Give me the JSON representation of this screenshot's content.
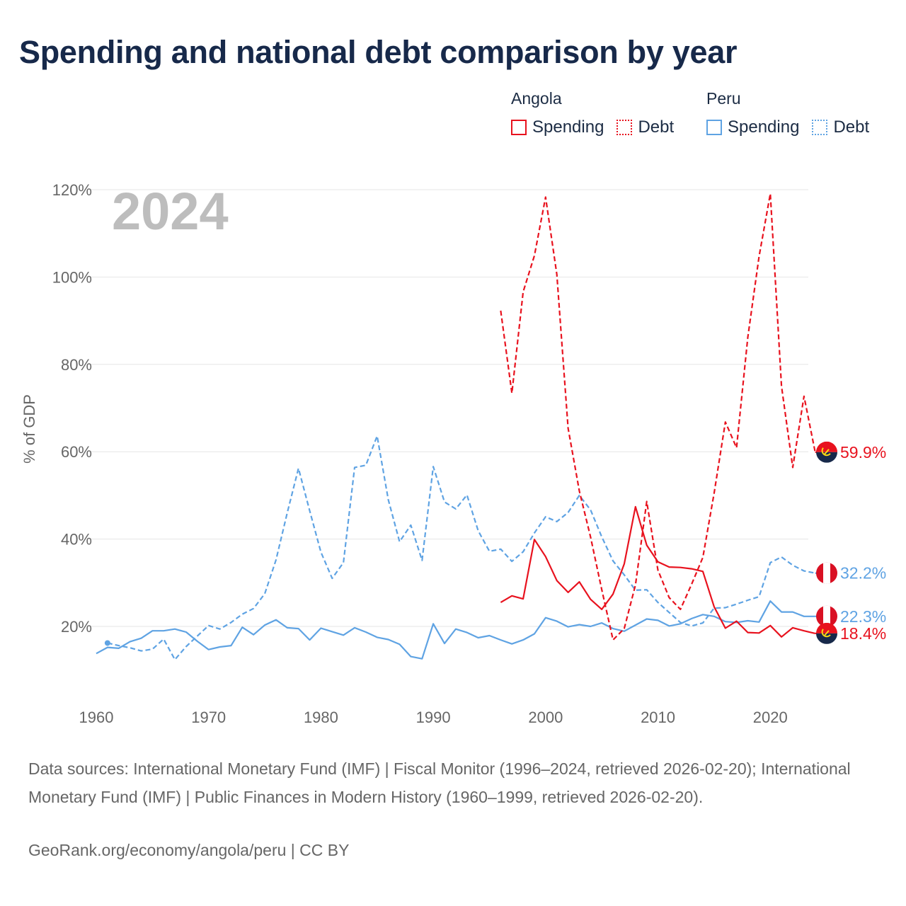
{
  "title": "Spending and national debt comparison by year",
  "legend": {
    "groups": [
      {
        "name": "Angola",
        "color": "#e8121e",
        "items": [
          {
            "label": "Spending",
            "style": "solid"
          },
          {
            "label": "Debt",
            "style": "dotted"
          }
        ]
      },
      {
        "name": "Peru",
        "color": "#5fa3e3",
        "items": [
          {
            "label": "Spending",
            "style": "solid"
          },
          {
            "label": "Debt",
            "style": "dotted"
          }
        ]
      }
    ]
  },
  "sources": "Data sources: International Monetary Fund (IMF) | Fiscal Monitor (1996–2024, retrieved 2026-02-20); International Monetary Fund (IMF) | Public Finances in Modern History (1960–1999, retrieved 2026-02-20).",
  "credit": "GeoRank.org/economy/angola/peru | CC BY",
  "colors": {
    "angola": "#e8121e",
    "peru": "#5fa3e3",
    "grid": "#e6e6e6",
    "axis_text": "#666666",
    "year_watermark": "#bdbdbd"
  },
  "chart_data": {
    "type": "line",
    "title": "Spending and national debt comparison by year",
    "ylabel": "% of GDP",
    "xlabel": "",
    "year_label": "2024",
    "xlim": [
      1960,
      2024
    ],
    "ylim": [
      5,
      122
    ],
    "xticks": [
      1960,
      1970,
      1980,
      1990,
      2000,
      2010,
      2020
    ],
    "yticks": [
      20,
      40,
      60,
      80,
      100,
      120
    ],
    "ytick_labels": [
      "20%",
      "40%",
      "60%",
      "80%",
      "100%",
      "120%"
    ],
    "grid": true,
    "series": [
      {
        "name": "Peru Spending",
        "country": "Peru",
        "metric": "Spending",
        "dash": "solid",
        "x": [
          1960,
          1961,
          1962,
          1963,
          1964,
          1965,
          1966,
          1967,
          1968,
          1969,
          1970,
          1971,
          1972,
          1973,
          1974,
          1975,
          1976,
          1977,
          1978,
          1979,
          1980,
          1981,
          1982,
          1983,
          1984,
          1985,
          1986,
          1987,
          1988,
          1989,
          1990,
          1991,
          1992,
          1993,
          1994,
          1995,
          1996,
          1997,
          1998,
          1999,
          2000,
          2001,
          2002,
          2003,
          2004,
          2005,
          2006,
          2007,
          2008,
          2009,
          2010,
          2011,
          2012,
          2013,
          2014,
          2015,
          2016,
          2017,
          2018,
          2019,
          2020,
          2021,
          2022,
          2023,
          2024
        ],
        "y": [
          13.8,
          15.2,
          15.0,
          16.5,
          17.3,
          19.0,
          19.0,
          19.4,
          18.7,
          16.6,
          14.7,
          15.3,
          15.6,
          19.8,
          18.1,
          20.3,
          21.5,
          19.7,
          19.5,
          16.9,
          19.6,
          18.8,
          18.0,
          19.7,
          18.7,
          17.5,
          17.0,
          15.9,
          13.1,
          12.6,
          20.6,
          16.1,
          19.4,
          18.6,
          17.4,
          17.9,
          16.9,
          16.0,
          16.9,
          18.3,
          22.0,
          21.2,
          19.9,
          20.4,
          20.0,
          20.8,
          19.5,
          18.9,
          20.3,
          21.7,
          21.4,
          20.1,
          20.6,
          21.8,
          22.7,
          22.3,
          21.1,
          20.9,
          21.3,
          21.0,
          25.8,
          23.3,
          23.3,
          22.3,
          22.3
        ],
        "end_label": "22.3%"
      },
      {
        "name": "Peru Debt",
        "country": "Peru",
        "metric": "Debt",
        "dash": "dashed",
        "x": [
          1961,
          1962,
          1963,
          1964,
          1965,
          1966,
          1967,
          1968,
          1969,
          1970,
          1971,
          1972,
          1973,
          1974,
          1975,
          1976,
          1977,
          1978,
          1979,
          1980,
          1981,
          1982,
          1983,
          1984,
          1985,
          1986,
          1987,
          1988,
          1989,
          1990,
          1991,
          1992,
          1993,
          1994,
          1995,
          1996,
          1997,
          1998,
          1999,
          2000,
          2001,
          2002,
          2003,
          2004,
          2005,
          2006,
          2007,
          2008,
          2009,
          2010,
          2011,
          2012,
          2013,
          2014,
          2015,
          2016,
          2017,
          2018,
          2019,
          2020,
          2021,
          2022,
          2023,
          2024
        ],
        "y": [
          16.2,
          15.6,
          15.1,
          14.4,
          14.8,
          17.1,
          12.4,
          15.4,
          17.8,
          20.2,
          19.4,
          20.9,
          22.8,
          24.1,
          27.5,
          35.2,
          46.0,
          56.2,
          46.5,
          37.0,
          31.0,
          34.6,
          56.4,
          56.9,
          63.6,
          49.0,
          39.4,
          43.2,
          35.1,
          56.6,
          48.5,
          46.9,
          50.1,
          41.9,
          37.2,
          37.7,
          34.9,
          37.1,
          41.4,
          45.1,
          44.0,
          46.1,
          50.0,
          46.7,
          40.5,
          35.0,
          31.8,
          28.3,
          28.4,
          25.5,
          23.2,
          20.9,
          20.1,
          20.8,
          24.2,
          24.3,
          25.1,
          26.0,
          26.8,
          34.6,
          35.9,
          34.0,
          32.7,
          32.2
        ],
        "end_label": "32.2%"
      },
      {
        "name": "Angola Spending",
        "country": "Angola",
        "metric": "Spending",
        "dash": "solid",
        "x": [
          1996,
          1997,
          1998,
          1999,
          2000,
          2001,
          2002,
          2003,
          2004,
          2005,
          2006,
          2007,
          2008,
          2009,
          2010,
          2011,
          2012,
          2013,
          2014,
          2015,
          2016,
          2017,
          2018,
          2019,
          2020,
          2021,
          2022,
          2023,
          2024
        ],
        "y": [
          25.5,
          27.0,
          26.3,
          39.9,
          36.0,
          30.5,
          27.8,
          30.2,
          26.2,
          23.9,
          27.4,
          34.3,
          47.4,
          38.6,
          34.8,
          33.6,
          33.5,
          33.2,
          32.6,
          24.5,
          19.6,
          21.2,
          18.6,
          18.5,
          20.2,
          17.6,
          19.7,
          19.0,
          18.4
        ],
        "end_label": "18.4%"
      },
      {
        "name": "Angola Debt",
        "country": "Angola",
        "metric": "Debt",
        "dash": "dashed",
        "x": [
          1996,
          1997,
          1998,
          1999,
          2000,
          2001,
          2002,
          2003,
          2004,
          2005,
          2006,
          2007,
          2008,
          2009,
          2010,
          2011,
          2012,
          2013,
          2014,
          2015,
          2016,
          2017,
          2018,
          2019,
          2020,
          2021,
          2022,
          2023,
          2024
        ],
        "y": [
          92.3,
          73.4,
          96.6,
          104.9,
          118.3,
          100.6,
          65.4,
          51.0,
          40.5,
          28.4,
          16.9,
          19.5,
          29.5,
          48.6,
          32.9,
          26.6,
          23.9,
          29.7,
          35.8,
          50.5,
          66.8,
          60.9,
          86.2,
          104.7,
          119.1,
          75.0,
          56.4,
          72.7,
          59.9
        ],
        "end_label": "59.9%"
      }
    ],
    "end_marker_for": {
      "Peru Spending": "peru-flag-icon",
      "Peru Debt": "peru-flag-icon",
      "Angola Spending": "angola-flag-icon",
      "Angola Debt": "angola-flag-icon"
    }
  }
}
